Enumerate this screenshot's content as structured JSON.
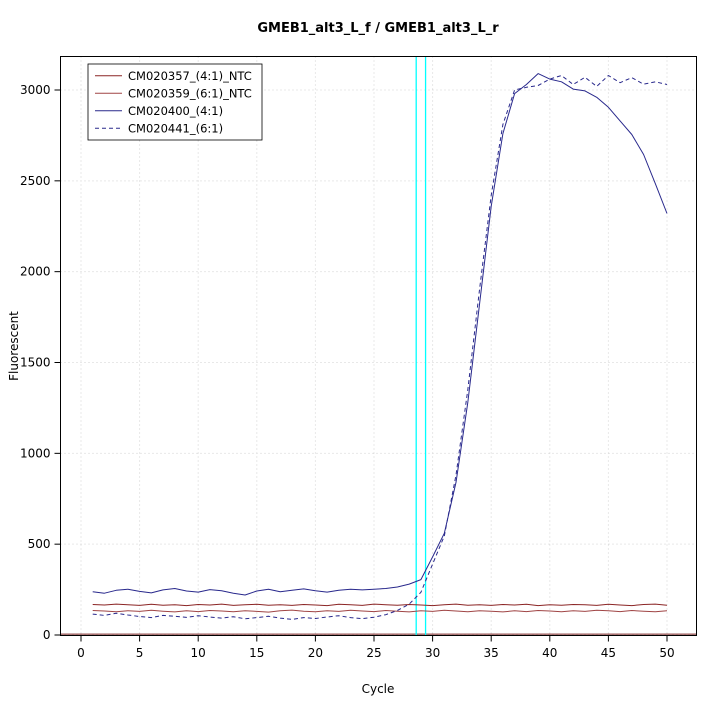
{
  "page": {
    "background": "#ffffff"
  },
  "chart_data": {
    "type": "line",
    "title": "GMEB1_alt3_L_f / GMEB1_alt3_L_r",
    "xlabel": "Cycle",
    "ylabel": "Fluorescent",
    "xlim": [
      0,
      51
    ],
    "ylim": [
      0,
      3185
    ],
    "xticks": [
      0,
      5,
      10,
      15,
      20,
      25,
      30,
      35,
      40,
      45,
      50
    ],
    "yticks": [
      0,
      500,
      1000,
      1500,
      2000,
      2500,
      3000
    ],
    "grid": true,
    "legend_position": "top-left",
    "x": [
      1,
      2,
      3,
      4,
      5,
      6,
      7,
      8,
      9,
      10,
      11,
      12,
      13,
      14,
      15,
      16,
      17,
      18,
      19,
      20,
      21,
      22,
      23,
      24,
      25,
      26,
      27,
      28,
      29,
      30,
      31,
      32,
      33,
      34,
      35,
      36,
      37,
      38,
      39,
      40,
      41,
      42,
      43,
      44,
      45,
      46,
      47,
      48,
      49,
      50
    ],
    "series": [
      {
        "name": "CM020357_(4:1)_NTC",
        "color": "#8b2525",
        "dash": "solid",
        "values": [
          168,
          165,
          170,
          166,
          163,
          169,
          164,
          167,
          162,
          168,
          165,
          170,
          163,
          166,
          169,
          164,
          167,
          163,
          168,
          165,
          162,
          169,
          166,
          163,
          170,
          167,
          164,
          168,
          165,
          162,
          167,
          170,
          164,
          166,
          163,
          168,
          165,
          169,
          162,
          167,
          164,
          168,
          166,
          163,
          169,
          165,
          162,
          168,
          170,
          164
        ]
      },
      {
        "name": "CM020359_(6:1)_NTC",
        "color": "#a04545",
        "dash": "solid",
        "values": [
          135,
          132,
          128,
          134,
          130,
          136,
          131,
          127,
          133,
          129,
          135,
          132,
          128,
          134,
          130,
          126,
          133,
          137,
          131,
          128,
          134,
          130,
          136,
          132,
          129,
          135,
          131,
          127,
          133,
          130,
          136,
          132,
          128,
          134,
          131,
          127,
          133,
          129,
          135,
          132,
          128,
          134,
          130,
          136,
          133,
          129,
          135,
          131,
          128,
          133
        ]
      },
      {
        "name": "CM020400_(4:1)",
        "color": "#28288c",
        "dash": "solid",
        "values": [
          238,
          230,
          246,
          252,
          240,
          232,
          248,
          256,
          242,
          236,
          250,
          244,
          230,
          220,
          242,
          252,
          238,
          246,
          254,
          244,
          236,
          246,
          252,
          248,
          252,
          256,
          264,
          280,
          305,
          430,
          560,
          840,
          1280,
          1820,
          2360,
          2760,
          2980,
          3030,
          3090,
          3060,
          3045,
          3005,
          2995,
          2960,
          2905,
          2830,
          2755,
          2645,
          2485,
          2320
        ]
      },
      {
        "name": "CM020441_(6:1)",
        "color": "#28288c",
        "dash": "dashed",
        "values": [
          115,
          108,
          120,
          110,
          102,
          96,
          108,
          103,
          97,
          106,
          99,
          93,
          101,
          89,
          96,
          103,
          93,
          86,
          96,
          91,
          99,
          106,
          96,
          90,
          98,
          112,
          135,
          170,
          235,
          390,
          545,
          880,
          1350,
          1900,
          2420,
          2810,
          3000,
          3015,
          3025,
          3060,
          3080,
          3030,
          3070,
          3020,
          3080,
          3040,
          3068,
          3032,
          3045,
          3030
        ]
      }
    ],
    "threshold_line": {
      "y": 5,
      "color": "#7b2424"
    },
    "ct_markers": [
      {
        "x": 28.6,
        "color": "#00ffff"
      },
      {
        "x": 29.4,
        "color": "#00ffff"
      }
    ]
  }
}
